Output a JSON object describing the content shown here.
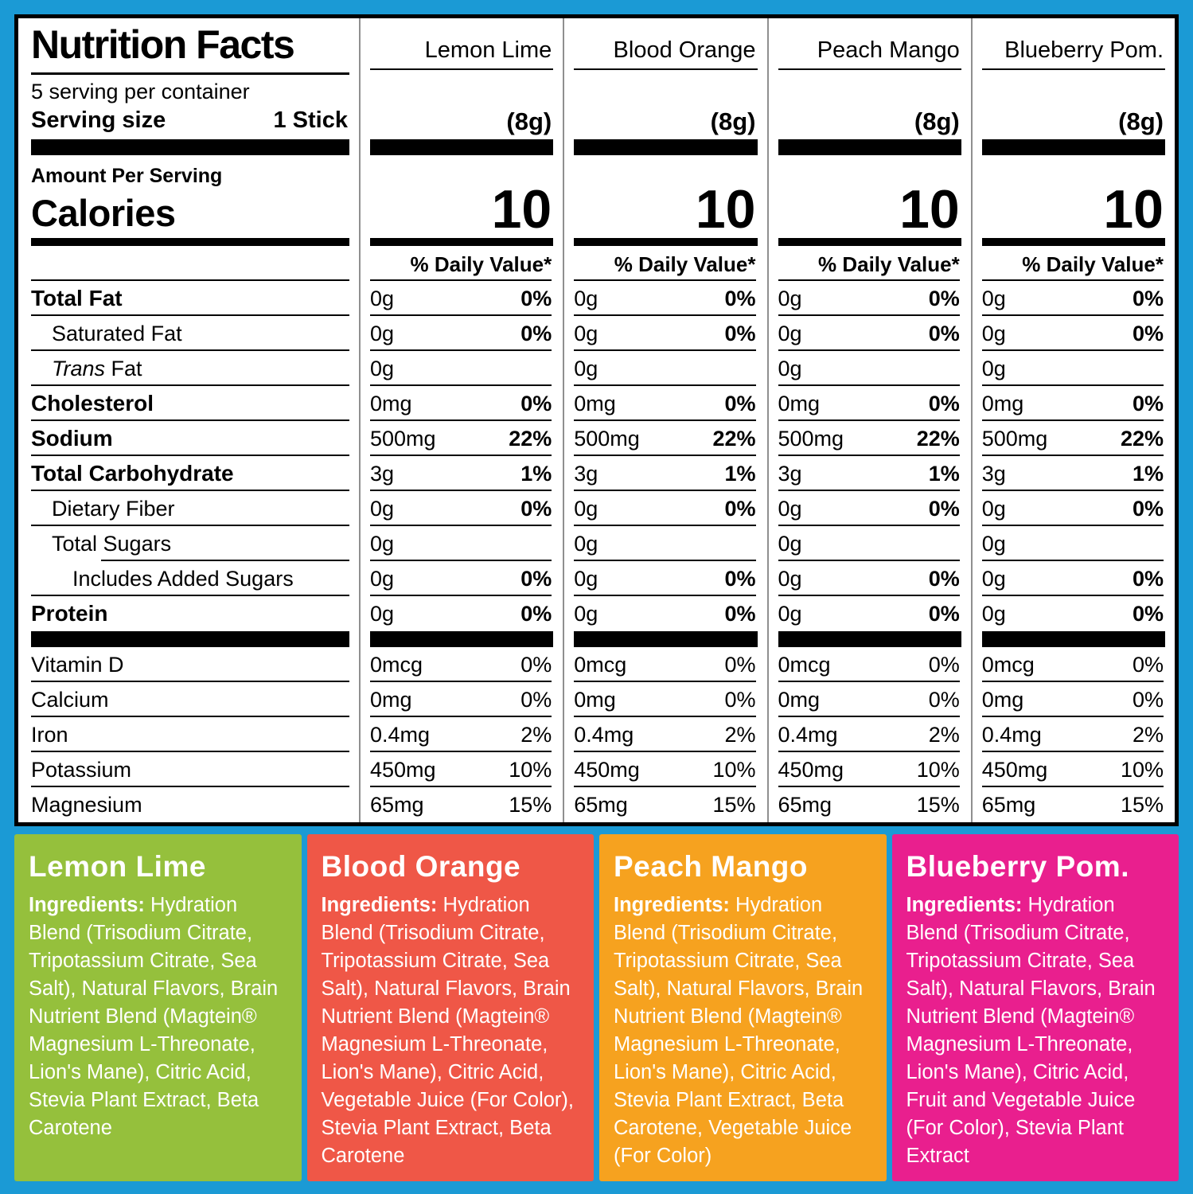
{
  "frame": {
    "background_color": "#1B9AD5"
  },
  "nutrition_panel": {
    "title": "Nutrition Facts",
    "servings_per_container": "5 serving per container",
    "serving_size_label": "Serving size",
    "serving_size_value": "1 Stick",
    "amount_per_serving": "Amount Per Serving",
    "calories_label": "Calories",
    "daily_value_header": "% Daily Value*",
    "columns": [
      {
        "name": "Lemon Lime",
        "serving_weight": "(8g)",
        "calories": "10"
      },
      {
        "name": "Blood Orange",
        "serving_weight": "(8g)",
        "calories": "10"
      },
      {
        "name": "Peach Mango",
        "serving_weight": "(8g)",
        "calories": "10"
      },
      {
        "name": "Blueberry Pom.",
        "serving_weight": "(8g)",
        "calories": "10"
      }
    ],
    "rows": [
      {
        "label": "Total Fat",
        "bold": true,
        "indent": 0,
        "amount": "0g",
        "dv": "0%",
        "dv_bold": true,
        "sep": true
      },
      {
        "label": "Saturated Fat",
        "bold": false,
        "indent": 1,
        "amount": "0g",
        "dv": "0%",
        "dv_bold": true,
        "sep": true
      },
      {
        "label": "Trans Fat",
        "italic_prefix": "Trans",
        "label_rest": "Fat",
        "bold": false,
        "indent": 1,
        "amount": "0g",
        "dv": "",
        "sep": true
      },
      {
        "label": "Cholesterol",
        "bold": true,
        "indent": 0,
        "amount": "0mg",
        "dv": "0%",
        "dv_bold": true,
        "sep": true
      },
      {
        "label": "Sodium",
        "bold": true,
        "indent": 0,
        "amount": "500mg",
        "dv": "22%",
        "dv_bold": true,
        "sep": true
      },
      {
        "label": "Total Carbohydrate",
        "bold": true,
        "indent": 0,
        "amount": "3g",
        "dv": "1%",
        "dv_bold": true,
        "sep": true
      },
      {
        "label": "Dietary Fiber",
        "bold": false,
        "indent": 1,
        "amount": "0g",
        "dv": "0%",
        "dv_bold": true,
        "sep": true
      },
      {
        "label": "Total Sugars",
        "bold": false,
        "indent": 1,
        "amount": "0g",
        "dv": "",
        "sep": true,
        "label_sep_indent": true
      },
      {
        "label": "Includes Added Sugars",
        "bold": false,
        "indent": 2,
        "amount": "0g",
        "dv": "0%",
        "dv_bold": true,
        "sep": true
      },
      {
        "label": "Protein",
        "bold": true,
        "indent": 0,
        "amount": "0g",
        "dv": "0%",
        "dv_bold": true,
        "sep": false
      }
    ],
    "minerals": [
      {
        "label": "Vitamin D",
        "amount": "0mcg",
        "dv": "0%"
      },
      {
        "label": "Calcium",
        "amount": "0mg",
        "dv": "0%"
      },
      {
        "label": "Iron",
        "amount": "0.4mg",
        "dv": "2%"
      },
      {
        "label": "Potassium",
        "amount": "450mg",
        "dv": "10%"
      },
      {
        "label": "Magnesium",
        "amount": "65mg",
        "dv": "15%"
      }
    ]
  },
  "flavor_panels": [
    {
      "name": "Lemon Lime",
      "color": "#95C03C",
      "ingredients_label": "Ingredients:",
      "ingredients": "Hydration Blend (Trisodium Citrate, Tripotassium Citrate, Sea Salt), Natural Flavors, Brain Nutrient Blend (Magtein® Magnesium L-Threonate, Lion's Mane), Citric Acid, Stevia Plant Extract, Beta Carotene"
    },
    {
      "name": "Blood Orange",
      "color": "#EF5747",
      "ingredients_label": "Ingredients:",
      "ingredients": "Hydration Blend (Trisodium Citrate, Tripotassium Citrate, Sea Salt), Natural Flavors, Brain Nutrient Blend (Magtein® Magnesium L-Threonate, Lion's Mane), Citric Acid, Vegetable Juice (For Color), Stevia Plant Extract, Beta Carotene"
    },
    {
      "name": "Peach Mango",
      "color": "#F6A21F",
      "ingredients_label": "Ingredients:",
      "ingredients": "Hydration Blend (Trisodium Citrate, Tripotassium Citrate, Sea Salt), Natural Flavors, Brain Nutrient Blend (Magtein® Magnesium L-Threonate, Lion's Mane), Citric Acid, Stevia Plant Extract, Beta Carotene, Vegetable Juice (For Color)"
    },
    {
      "name": "Blueberry Pom.",
      "color": "#E91F8E",
      "ingredients_label": "Ingredients:",
      "ingredients": "Hydration Blend (Trisodium Citrate, Tripotassium Citrate, Sea Salt), Natural Flavors, Brain Nutrient Blend (Magtein® Magnesium L-Threonate, Lion's Mane), Citric Acid, Fruit and Vegetable Juice (For Color), Stevia Plant Extract"
    }
  ]
}
